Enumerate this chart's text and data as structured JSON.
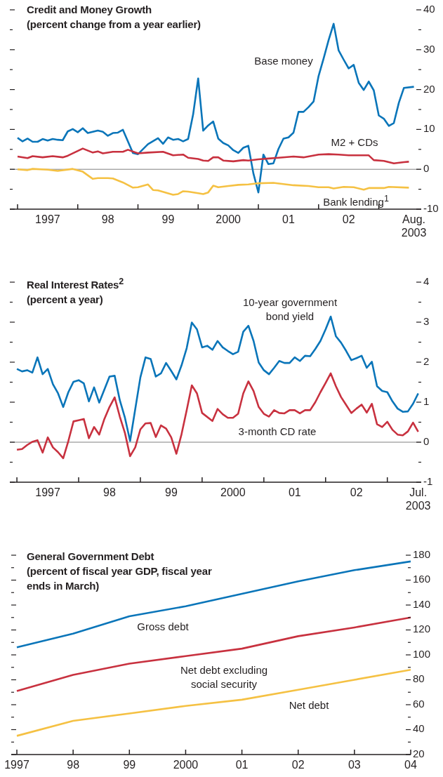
{
  "chart_data": [
    {
      "type": "line",
      "title": "Credit and Money Growth",
      "subtitle": "(percent change from a year earlier)",
      "xlim": [
        "1996-11-15",
        "2003-09-15"
      ],
      "xticks": [
        {
          "value": "1997-01",
          "label": null
        },
        {
          "value": "1997-07",
          "label": "1997"
        },
        {
          "value": "1998-01",
          "label": null
        },
        {
          "value": "1998-07",
          "label": "98"
        },
        {
          "value": "1999-01",
          "label": null
        },
        {
          "value": "1999-07",
          "label": "99"
        },
        {
          "value": "2000-01",
          "label": null
        },
        {
          "value": "2000-07",
          "label": "2000"
        },
        {
          "value": "2001-01",
          "label": null
        },
        {
          "value": "2001-07",
          "label": "01"
        },
        {
          "value": "2002-01",
          "label": null
        },
        {
          "value": "2002-07",
          "label": "02"
        },
        {
          "value": "2003-01",
          "label": null
        },
        {
          "value": "2003-08",
          "label": "Aug. 2003"
        }
      ],
      "ylim": [
        -10,
        40
      ],
      "yticks": [
        -10,
        {
          "value": -5,
          "label": null
        },
        0,
        {
          "value": 5,
          "label": null
        },
        10,
        {
          "value": 15,
          "label": null
        },
        20,
        {
          "value": 25,
          "label": null
        },
        30,
        {
          "value": 35,
          "label": null
        },
        40
      ],
      "ref_lines": [
        {
          "axis": "y",
          "value": 0,
          "color": "#808080"
        }
      ],
      "series": [
        {
          "name": "Base money",
          "color": "#0a75b9",
          "x": [
            "1997-01",
            "1997-02",
            "1997-03",
            "1997-04",
            "1997-05",
            "1997-06",
            "1997-07",
            "1997-08",
            "1997-09",
            "1997-10",
            "1997-11",
            "1997-12",
            "1998-01",
            "1998-02",
            "1998-03",
            "1998-04",
            "1998-05",
            "1998-06",
            "1998-07",
            "1998-08",
            "1998-09",
            "1998-10",
            "1998-12",
            "1999-01",
            "1999-03",
            "1999-05",
            "1999-06",
            "1999-07",
            "1999-08",
            "1999-09",
            "1999-10",
            "1999-11",
            "1999-12",
            "2000-01",
            "2000-02",
            "2000-03",
            "2000-04",
            "2000-05",
            "2000-06",
            "2000-07",
            "2000-08",
            "2000-09",
            "2000-10",
            "2000-11",
            "2000-12",
            "2001-01",
            "2001-02",
            "2001-03",
            "2001-04",
            "2001-05",
            "2001-06",
            "2001-07",
            "2001-08",
            "2001-09",
            "2001-10",
            "2001-11",
            "2001-12",
            "2002-01",
            "2002-02",
            "2002-03",
            "2002-04",
            "2002-05",
            "2002-06",
            "2002-07",
            "2002-08",
            "2002-09",
            "2002-10",
            "2002-11",
            "2002-12",
            "2003-01",
            "2003-02",
            "2003-03",
            "2003-04",
            "2003-05",
            "2003-06",
            "2003-08"
          ],
          "values": [
            7.9,
            7.0,
            7.7,
            6.9,
            6.9,
            7.6,
            7.2,
            7.6,
            7.4,
            7.3,
            9.5,
            10.1,
            9.3,
            10.3,
            9.1,
            9.4,
            9.7,
            9.4,
            8.4,
            9.1,
            9.2,
            9.9,
            4.1,
            3.8,
            6.3,
            7.8,
            6.4,
            8.0,
            7.4,
            7.6,
            7.0,
            7.6,
            13.8,
            22.8,
            9.7,
            11.0,
            12.0,
            7.7,
            6.6,
            6.0,
            4.8,
            4.1,
            5.4,
            5.9,
            -1.0,
            -5.8,
            3.7,
            1.3,
            1.5,
            5.1,
            7.7,
            8.0,
            9.2,
            14.4,
            14.4,
            15.6,
            17.0,
            23.4,
            27.8,
            32.4,
            36.5,
            29.8,
            27.5,
            25.3,
            26.2,
            21.7,
            19.9,
            22.0,
            19.8,
            13.5,
            12.7,
            10.9,
            11.6,
            16.7,
            20.4,
            20.7
          ]
        },
        {
          "name": "M2 + CDs",
          "color": "#c8313f",
          "x": [
            "1997-01",
            "1997-03",
            "1997-04",
            "1997-06",
            "1997-08",
            "1997-10",
            "1997-11",
            "1998-02",
            "1998-04",
            "1998-05",
            "1998-06",
            "1998-08",
            "1998-10",
            "1998-11",
            "1999-01",
            "1999-03",
            "1999-06",
            "1999-08",
            "1999-10",
            "1999-11",
            "2000-01",
            "2000-02",
            "2000-03",
            "2000-04",
            "2000-05",
            "2000-06",
            "2000-08",
            "2000-10",
            "2000-11",
            "2001-01",
            "2001-03",
            "2001-05",
            "2001-08",
            "2001-10",
            "2002-01",
            "2002-03",
            "2002-05",
            "2002-07",
            "2002-09",
            "2002-11",
            "2002-12",
            "2003-02",
            "2003-04",
            "2003-06",
            "2003-07"
          ],
          "values": [
            3.2,
            2.8,
            3.3,
            3.0,
            3.3,
            3.0,
            3.4,
            5.2,
            4.2,
            4.5,
            4.0,
            4.4,
            4.4,
            4.9,
            4.0,
            4.2,
            4.4,
            3.5,
            3.7,
            2.9,
            2.6,
            2.2,
            2.1,
            3.0,
            3.0,
            2.2,
            2.0,
            2.3,
            2.2,
            2.5,
            2.7,
            2.9,
            3.2,
            3.0,
            3.7,
            3.8,
            3.7,
            3.5,
            3.5,
            3.5,
            2.3,
            2.1,
            1.5,
            1.8,
            1.9
          ]
        },
        {
          "name": "Bank lending$^{1}$",
          "color": "#f5c143",
          "x": [
            "1997-01",
            "1997-03",
            "1997-04",
            "1997-07",
            "1997-09",
            "1997-12",
            "1998-02",
            "1998-04",
            "1998-05",
            "1998-07",
            "1998-08",
            "1998-10",
            "1998-12",
            "1999-01",
            "1999-03",
            "1999-04",
            "1999-05",
            "1999-08",
            "1999-09",
            "1999-10",
            "1999-11",
            "2000-01",
            "2000-02",
            "2000-03",
            "2000-04",
            "2000-05",
            "2000-07",
            "2000-09",
            "2000-11",
            "2001-01",
            "2001-04",
            "2001-06",
            "2001-08",
            "2001-11",
            "2002-01",
            "2002-03",
            "2002-04",
            "2002-06",
            "2002-08",
            "2002-10",
            "2002-11",
            "2003-02",
            "2003-03",
            "2003-07"
          ],
          "values": [
            0,
            -0.2,
            0.1,
            -0.1,
            -0.4,
            0.1,
            -0.6,
            -2.4,
            -2.2,
            -2.2,
            -2.3,
            -3.3,
            -4.6,
            -4.5,
            -3.8,
            -5.2,
            -5.3,
            -6.4,
            -6.2,
            -5.5,
            -5.6,
            -6.0,
            -6.2,
            -5.8,
            -4.1,
            -4.5,
            -4.2,
            -3.9,
            -3.8,
            -3.5,
            -3.4,
            -3.7,
            -4.0,
            -4.2,
            -4.5,
            -4.5,
            -4.8,
            -4.4,
            -4.5,
            -5.1,
            -4.7,
            -4.7,
            -4.4,
            -4.6
          ]
        }
      ]
    },
    {
      "type": "line",
      "title": "Real Interest Rates$^{2}$",
      "subtitle": "(percent a year)",
      "xlim": [
        "1996-11-20",
        "2003-07-19"
      ],
      "xticks": [
        {
          "value": "1997-01",
          "label": null
        },
        {
          "value": "1997-07",
          "label": "1997"
        },
        {
          "value": "1998-01",
          "label": null
        },
        {
          "value": "1998-07",
          "label": "98"
        },
        {
          "value": "1999-01",
          "label": null
        },
        {
          "value": "1999-07",
          "label": "99"
        },
        {
          "value": "2000-01",
          "label": null
        },
        {
          "value": "2000-07",
          "label": "2000"
        },
        {
          "value": "2001-01",
          "label": null
        },
        {
          "value": "2001-07",
          "label": "01"
        },
        {
          "value": "2002-01",
          "label": null
        },
        {
          "value": "2002-07",
          "label": "02"
        },
        {
          "value": "2003-01",
          "label": null
        },
        {
          "value": "2003-07",
          "label": "Jul. 2003"
        }
      ],
      "ylim": [
        -1,
        4
      ],
      "yticks": [
        -1,
        {
          "value": -0.5,
          "label": null
        },
        0,
        {
          "value": 0.5,
          "label": null
        },
        1,
        {
          "value": 1.5,
          "label": null
        },
        2,
        {
          "value": 2.5,
          "label": null
        },
        3,
        {
          "value": 3.5,
          "label": null
        },
        4
      ],
      "ref_lines": [
        {
          "axis": "y",
          "value": 0,
          "color": "#808080"
        }
      ],
      "series": [
        {
          "name": "10-year government bond yield",
          "color": "#0a75b9",
          "x": [
            "1997-01",
            "1997-02",
            "1997-03",
            "1997-04",
            "1997-05",
            "1997-06",
            "1997-07",
            "1997-08",
            "1997-09",
            "1997-10",
            "1997-11",
            "1997-12",
            "1998-01",
            "1998-02",
            "1998-03",
            "1998-04",
            "1998-05",
            "1998-07",
            "1998-08",
            "1998-09",
            "1998-10",
            "1998-11",
            "1999-01",
            "1999-02",
            "1999-03",
            "1999-04",
            "1999-05",
            "1999-06",
            "1999-07",
            "1999-08",
            "1999-09",
            "1999-10",
            "1999-11",
            "1999-12",
            "2000-01",
            "2000-02",
            "2000-03",
            "2000-04",
            "2000-05",
            "2000-06",
            "2000-07",
            "2000-08",
            "2000-09",
            "2000-10",
            "2000-11",
            "2000-12",
            "2001-01",
            "2001-02",
            "2001-03",
            "2001-04",
            "2001-05",
            "2001-06",
            "2001-07",
            "2001-08",
            "2001-09",
            "2001-10",
            "2001-11",
            "2001-12",
            "2002-01",
            "2002-02",
            "2002-03",
            "2002-04",
            "2002-05",
            "2002-06",
            "2002-07",
            "2002-08",
            "2002-09",
            "2002-10",
            "2002-11",
            "2002-12",
            "2003-01",
            "2003-02",
            "2003-03",
            "2003-04",
            "2003-05",
            "2003-06",
            "2003-07"
          ],
          "values": [
            1.83,
            1.77,
            1.8,
            1.74,
            2.12,
            1.7,
            1.83,
            1.45,
            1.22,
            0.88,
            1.25,
            1.51,
            1.55,
            1.47,
            1.02,
            1.37,
            0.99,
            1.64,
            1.66,
            1.05,
            0.61,
            0.03,
            1.62,
            2.12,
            2.08,
            1.64,
            1.72,
            1.98,
            1.78,
            1.57,
            1.92,
            2.35,
            2.99,
            2.82,
            2.37,
            2.41,
            2.31,
            2.53,
            2.37,
            2.28,
            2.2,
            2.26,
            2.76,
            2.91,
            2.53,
            1.99,
            1.8,
            1.7,
            1.86,
            2.03,
            1.98,
            1.98,
            2.12,
            2.03,
            2.16,
            2.15,
            2.33,
            2.53,
            2.82,
            3.14,
            2.65,
            2.49,
            2.28,
            2.05,
            2.1,
            2.16,
            1.86,
            2.01,
            1.4,
            1.28,
            1.25,
            1.02,
            0.84,
            0.76,
            0.77,
            0.96,
            1.22
          ]
        },
        {
          "name": "3-month CD rate",
          "color": "#c8313f",
          "x": [
            "1997-01",
            "1997-02",
            "1997-03",
            "1997-04",
            "1997-05",
            "1997-06",
            "1997-07",
            "1997-08",
            "1997-09",
            "1997-10",
            "1997-11",
            "1997-12",
            "1998-01",
            "1998-02",
            "1998-03",
            "1998-04",
            "1998-05",
            "1998-06",
            "1998-07",
            "1998-08",
            "1998-09",
            "1998-10",
            "1998-11",
            "1998-12",
            "1999-01",
            "1999-02",
            "1999-03",
            "1999-04",
            "1999-05",
            "1999-06",
            "1999-07",
            "1999-08",
            "1999-09",
            "1999-10",
            "1999-11",
            "1999-12",
            "2000-01",
            "2000-03",
            "2000-04",
            "2000-05",
            "2000-06",
            "2000-07",
            "2000-08",
            "2000-09",
            "2000-10",
            "2000-11",
            "2000-12",
            "2001-01",
            "2001-02",
            "2001-03",
            "2001-04",
            "2001-05",
            "2001-06",
            "2001-07",
            "2001-08",
            "2001-09",
            "2001-10",
            "2001-11",
            "2001-12",
            "2002-01",
            "2002-02",
            "2002-03",
            "2002-04",
            "2002-05",
            "2002-06",
            "2002-07",
            "2002-08",
            "2002-09",
            "2002-10",
            "2002-11",
            "2002-12",
            "2003-01",
            "2003-02",
            "2003-03",
            "2003-04",
            "2003-05",
            "2003-06",
            "2003-07"
          ],
          "values": [
            -0.19,
            -0.17,
            -0.07,
            0.01,
            0.05,
            -0.26,
            0.12,
            -0.13,
            -0.25,
            -0.4,
            0.03,
            0.52,
            0.55,
            0.58,
            0.1,
            0.38,
            0.19,
            0.58,
            0.88,
            1.12,
            0.64,
            0.23,
            -0.35,
            -0.13,
            0.32,
            0.47,
            0.48,
            0.13,
            0.42,
            0.34,
            0.12,
            -0.29,
            0.2,
            0.8,
            1.42,
            1.22,
            0.73,
            0.53,
            0.83,
            0.7,
            0.61,
            0.61,
            0.71,
            1.22,
            1.52,
            1.28,
            0.88,
            0.71,
            0.64,
            0.8,
            0.73,
            0.72,
            0.8,
            0.8,
            0.72,
            0.8,
            0.8,
            1.0,
            1.25,
            1.48,
            1.72,
            1.4,
            1.13,
            0.93,
            0.73,
            0.84,
            0.94,
            0.74,
            0.96,
            0.45,
            0.38,
            0.51,
            0.31,
            0.19,
            0.17,
            0.27,
            0.49,
            0.26
          ]
        }
      ]
    },
    {
      "type": "line",
      "title": "General Government Debt",
      "subtitle": "(percent of fiscal year GDP, fiscal year ends in March)",
      "xlim": [
        1996.9,
        2004
      ],
      "xticks": [
        1997,
        {
          "value": 1998,
          "label": "98"
        },
        {
          "value": 1999,
          "label": "99"
        },
        2000,
        {
          "value": 2001,
          "label": "01"
        },
        {
          "value": 2002,
          "label": "02"
        },
        {
          "value": 2003,
          "label": "03"
        },
        {
          "value": 2004,
          "label": "04"
        }
      ],
      "ylim": [
        20,
        180
      ],
      "yticks": [
        20,
        {
          "value": 30,
          "label": null
        },
        40,
        {
          "value": 50,
          "label": null
        },
        60,
        {
          "value": 70,
          "label": null
        },
        80,
        {
          "value": 90,
          "label": null
        },
        100,
        {
          "value": 110,
          "label": null
        },
        120,
        {
          "value": 130,
          "label": null
        },
        140,
        {
          "value": 150,
          "label": null
        },
        160,
        {
          "value": 170,
          "label": null
        },
        180
      ],
      "series": [
        {
          "name": "Gross debt",
          "color": "#0a75b9",
          "x": [
            1997,
            1998,
            1999,
            2000,
            2001,
            2002,
            2003,
            2004
          ],
          "values": [
            106,
            117,
            131,
            139,
            149,
            159,
            168,
            175
          ]
        },
        {
          "name": "Net debt excluding social security",
          "color": "#c8313f",
          "x": [
            1997,
            1998,
            1999,
            2000,
            2001,
            2002,
            2003,
            2004
          ],
          "values": [
            71,
            84,
            93,
            99,
            105,
            115,
            122,
            130
          ]
        },
        {
          "name": "Net debt",
          "color": "#f5c143",
          "x": [
            1997,
            1998,
            1999,
            2000,
            2001,
            2002,
            2003,
            2004
          ],
          "values": [
            35,
            47,
            53,
            59,
            64,
            72,
            80,
            88
          ]
        }
      ]
    }
  ]
}
